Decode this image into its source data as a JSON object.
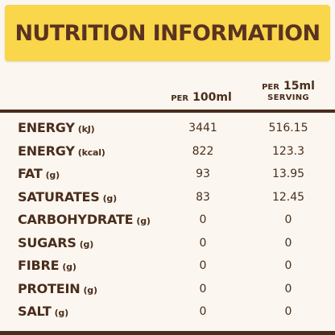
{
  "banner": {
    "title": "NUTRITION INFORMATION"
  },
  "headers": {
    "per100_prefix": "PER",
    "per100_value": "100ml",
    "per15_prefix": "PER",
    "per15_value": "15ml",
    "per15_sub": "SERVING"
  },
  "rows": [
    {
      "name": "ENERGY",
      "unit": "(kJ)",
      "per100": "3441",
      "per15": "516.15"
    },
    {
      "name": "ENERGY",
      "unit": "(kcal)",
      "per100": "822",
      "per15": "123.3"
    },
    {
      "name": "FAT",
      "unit": "(g)",
      "per100": "93",
      "per15": "13.95"
    },
    {
      "name": "SATURATES",
      "unit": "(g)",
      "per100": "83",
      "per15": "12.45"
    },
    {
      "name": "CARBOHYDRATE",
      "unit": "(g)",
      "per100": "0",
      "per15": "0"
    },
    {
      "name": "SUGARS",
      "unit": "(g)",
      "per100": "0",
      "per15": "0"
    },
    {
      "name": "FIBRE",
      "unit": "(g)",
      "per100": "0",
      "per15": "0"
    },
    {
      "name": "PROTEIN",
      "unit": "(g)",
      "per100": "0",
      "per15": "0"
    },
    {
      "name": "SALT",
      "unit": "(g)",
      "per100": "0",
      "per15": "0"
    }
  ]
}
